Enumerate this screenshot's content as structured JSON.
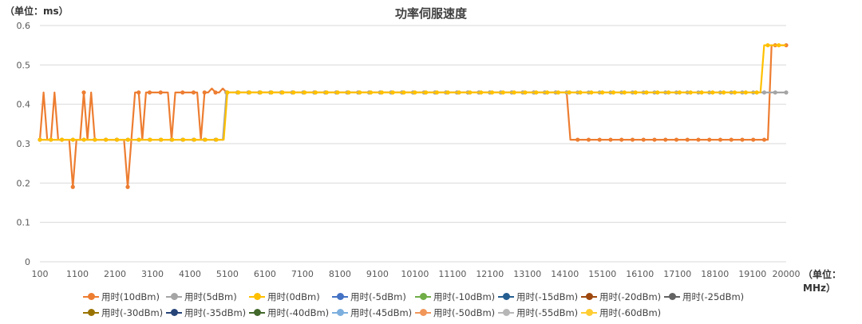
{
  "chart_data": {
    "type": "line",
    "title": "功率伺服速度",
    "ylabel": "（单位：ms）",
    "xlabel": "（单位：MHz）",
    "ylim": [
      0,
      0.6
    ],
    "yticks": [
      "0",
      "0.1",
      "0.2",
      "0.3",
      "0.4",
      "0.5",
      "0.6"
    ],
    "xlim": [
      100,
      20000
    ],
    "xticks": [
      "100",
      "1100",
      "2100",
      "3100",
      "4100",
      "5100",
      "6100",
      "7100",
      "8100",
      "9100",
      "10100",
      "11100",
      "12100",
      "13100",
      "14100",
      "15100",
      "16100",
      "17100",
      "18100",
      "19100",
      "20000"
    ],
    "grid": true,
    "legend_position": "bottom",
    "series": [
      {
        "name": "用时(10dBm)",
        "color": "#ED7D31",
        "values": [
          0.31,
          0.43,
          0.31,
          0.31,
          0.43,
          0.31,
          0.31,
          0.31,
          0.31,
          0.19,
          0.31,
          0.31,
          0.43,
          0.31,
          0.43,
          0.31,
          0.31,
          0.31,
          0.31,
          0.31,
          0.31,
          0.31,
          0.31,
          0.31,
          0.19,
          0.31,
          0.43,
          0.43,
          0.31,
          0.43,
          0.43,
          0.43,
          0.43,
          0.43,
          0.43,
          0.43,
          0.31,
          0.43,
          0.43,
          0.43,
          0.43,
          0.43,
          0.43,
          0.43,
          0.31,
          0.43,
          0.43,
          0.44,
          0.43,
          0.43,
          0.44,
          0.43,
          0.43,
          0.43,
          0.43,
          0.43,
          0.43,
          0.43,
          0.43,
          0.43,
          0.43,
          0.43,
          0.43,
          0.43,
          0.43,
          0.43,
          0.43,
          0.43,
          0.43,
          0.43,
          0.43,
          0.43,
          0.43,
          0.43,
          0.43,
          0.43,
          0.43,
          0.43,
          0.43,
          0.43,
          0.43,
          0.43,
          0.43,
          0.43,
          0.43,
          0.43,
          0.43,
          0.43,
          0.43,
          0.43,
          0.43,
          0.43,
          0.43,
          0.43,
          0.43,
          0.43,
          0.43,
          0.43,
          0.43,
          0.43,
          0.43,
          0.43,
          0.43,
          0.43,
          0.43,
          0.43,
          0.43,
          0.43,
          0.43,
          0.43,
          0.43,
          0.43,
          0.43,
          0.43,
          0.43,
          0.43,
          0.43,
          0.43,
          0.43,
          0.43,
          0.43,
          0.43,
          0.43,
          0.43,
          0.43,
          0.43,
          0.43,
          0.43,
          0.43,
          0.43,
          0.43,
          0.43,
          0.43,
          0.43,
          0.43,
          0.43,
          0.43,
          0.43,
          0.43,
          0.43,
          0.43,
          0.43,
          0.43,
          0.43,
          0.43,
          0.31,
          0.31,
          0.31,
          0.31,
          0.31,
          0.31,
          0.31,
          0.31,
          0.31,
          0.31,
          0.31,
          0.31,
          0.31,
          0.31,
          0.31,
          0.31,
          0.31,
          0.31,
          0.31,
          0.31,
          0.31,
          0.31,
          0.31,
          0.31,
          0.31,
          0.31,
          0.31,
          0.31,
          0.31,
          0.31,
          0.31,
          0.31,
          0.31,
          0.31,
          0.31,
          0.31,
          0.31,
          0.31,
          0.31,
          0.31,
          0.31,
          0.31,
          0.31,
          0.31,
          0.31,
          0.31,
          0.31,
          0.31,
          0.31,
          0.31,
          0.31,
          0.31,
          0.31,
          0.31,
          0.31,
          0.55,
          0.55,
          0.55,
          0.55,
          0.55
        ]
      },
      {
        "name": "用时(5dBm)",
        "color": "#A5A5A5",
        "values": [
          0.31,
          0.31,
          0.31,
          0.31,
          0.31,
          0.31,
          0.31,
          0.31,
          0.31,
          0.31,
          0.31,
          0.31,
          0.31,
          0.31,
          0.31,
          0.31,
          0.31,
          0.31,
          0.31,
          0.31,
          0.31,
          0.31,
          0.31,
          0.31,
          0.31,
          0.31,
          0.31,
          0.31,
          0.31,
          0.31,
          0.31,
          0.31,
          0.31,
          0.31,
          0.31,
          0.31,
          0.31,
          0.31,
          0.31,
          0.31,
          0.31,
          0.31,
          0.31,
          0.31,
          0.31,
          0.31,
          0.31,
          0.31,
          0.31,
          0.31,
          0.31,
          0.43,
          0.43,
          0.43,
          0.43,
          0.43,
          0.43,
          0.43,
          0.43,
          0.43,
          0.43,
          0.43,
          0.43,
          0.43,
          0.43,
          0.43,
          0.43,
          0.43,
          0.43,
          0.43,
          0.43,
          0.43,
          0.43,
          0.43,
          0.43,
          0.43,
          0.43,
          0.43,
          0.43,
          0.43,
          0.43,
          0.43,
          0.43,
          0.43,
          0.43,
          0.43,
          0.43,
          0.43,
          0.43,
          0.43,
          0.43,
          0.43,
          0.43,
          0.43,
          0.43,
          0.43,
          0.43,
          0.43,
          0.43,
          0.43,
          0.43,
          0.43,
          0.43,
          0.43,
          0.43,
          0.43,
          0.43,
          0.43,
          0.43,
          0.43,
          0.43,
          0.43,
          0.43,
          0.43,
          0.43,
          0.43,
          0.43,
          0.43,
          0.43,
          0.43,
          0.43,
          0.43,
          0.43,
          0.43,
          0.43,
          0.43,
          0.43,
          0.43,
          0.43,
          0.43,
          0.43,
          0.43,
          0.43,
          0.43,
          0.43,
          0.43,
          0.43,
          0.43,
          0.43,
          0.43,
          0.43,
          0.43,
          0.43,
          0.43,
          0.43,
          0.43,
          0.43,
          0.43,
          0.43,
          0.43,
          0.43,
          0.43,
          0.43,
          0.43,
          0.43,
          0.43,
          0.43,
          0.43,
          0.43,
          0.43,
          0.43,
          0.43,
          0.43,
          0.43,
          0.43,
          0.43,
          0.43,
          0.43,
          0.43,
          0.43,
          0.43,
          0.43,
          0.43,
          0.43,
          0.43,
          0.43,
          0.43,
          0.43,
          0.43,
          0.43,
          0.43,
          0.43,
          0.43,
          0.43,
          0.43,
          0.43,
          0.43,
          0.43,
          0.43,
          0.43,
          0.43,
          0.43,
          0.43,
          0.43,
          0.43,
          0.43,
          0.43,
          0.43,
          0.43,
          0.43,
          0.43,
          0.43,
          0.43,
          0.43,
          0.43
        ]
      },
      {
        "name": "用时(0dBm)",
        "color": "#FFC000",
        "values": [
          0.31,
          0.31,
          0.31,
          0.31,
          0.31,
          0.31,
          0.31,
          0.31,
          0.31,
          0.31,
          0.31,
          0.31,
          0.31,
          0.31,
          0.31,
          0.31,
          0.31,
          0.31,
          0.31,
          0.31,
          0.31,
          0.31,
          0.31,
          0.31,
          0.31,
          0.31,
          0.31,
          0.31,
          0.31,
          0.31,
          0.31,
          0.31,
          0.31,
          0.31,
          0.31,
          0.31,
          0.31,
          0.31,
          0.31,
          0.31,
          0.31,
          0.31,
          0.31,
          0.31,
          0.31,
          0.31,
          0.31,
          0.31,
          0.31,
          0.31,
          0.31,
          0.43,
          0.43,
          0.43,
          0.43,
          0.43,
          0.43,
          0.43,
          0.43,
          0.43,
          0.43,
          0.43,
          0.43,
          0.43,
          0.43,
          0.43,
          0.43,
          0.43,
          0.43,
          0.43,
          0.43,
          0.43,
          0.43,
          0.43,
          0.43,
          0.43,
          0.43,
          0.43,
          0.43,
          0.43,
          0.43,
          0.43,
          0.43,
          0.43,
          0.43,
          0.43,
          0.43,
          0.43,
          0.43,
          0.43,
          0.43,
          0.43,
          0.43,
          0.43,
          0.43,
          0.43,
          0.43,
          0.43,
          0.43,
          0.43,
          0.43,
          0.43,
          0.43,
          0.43,
          0.43,
          0.43,
          0.43,
          0.43,
          0.43,
          0.43,
          0.43,
          0.43,
          0.43,
          0.43,
          0.43,
          0.43,
          0.43,
          0.43,
          0.43,
          0.43,
          0.43,
          0.43,
          0.43,
          0.43,
          0.43,
          0.43,
          0.43,
          0.43,
          0.43,
          0.43,
          0.43,
          0.43,
          0.43,
          0.43,
          0.43,
          0.43,
          0.43,
          0.43,
          0.43,
          0.43,
          0.43,
          0.43,
          0.43,
          0.43,
          0.43,
          0.43,
          0.43,
          0.43,
          0.43,
          0.43,
          0.43,
          0.43,
          0.43,
          0.43,
          0.43,
          0.43,
          0.43,
          0.43,
          0.43,
          0.43,
          0.43,
          0.43,
          0.43,
          0.43,
          0.43,
          0.43,
          0.43,
          0.43,
          0.43,
          0.43,
          0.43,
          0.43,
          0.43,
          0.43,
          0.43,
          0.43,
          0.43,
          0.43,
          0.43,
          0.43,
          0.43,
          0.43,
          0.43,
          0.43,
          0.43,
          0.43,
          0.43,
          0.43,
          0.43,
          0.43,
          0.43,
          0.43,
          0.43,
          0.43,
          0.43,
          0.43,
          0.43,
          0.55,
          0.55,
          0.55,
          0.55,
          0.55,
          0.55,
          0.55
        ]
      },
      {
        "name": "用时(-5dBm)",
        "color": "#4472C4",
        "values": []
      },
      {
        "name": "用时(-10dBm)",
        "color": "#70AD47",
        "values": []
      },
      {
        "name": "用时(-15dBm)",
        "color": "#255E91",
        "values": []
      },
      {
        "name": "用时(-20dBm)",
        "color": "#9E480E",
        "values": []
      },
      {
        "name": "用时(-25dBm)",
        "color": "#636363",
        "values": []
      },
      {
        "name": "用时(-30dBm)",
        "color": "#997300",
        "values": []
      },
      {
        "name": "用时(-35dBm)",
        "color": "#264478",
        "values": []
      },
      {
        "name": "用时(-40dBm)",
        "color": "#43682B",
        "values": []
      },
      {
        "name": "用时(-45dBm)",
        "color": "#7CAFDD",
        "values": []
      },
      {
        "name": "用时(-50dBm)",
        "color": "#F1975A",
        "values": []
      },
      {
        "name": "用时(-55dBm)",
        "color": "#B7B7B7",
        "values": []
      },
      {
        "name": "用时(-60dBm)",
        "color": "#FFCD33",
        "values": []
      }
    ]
  }
}
